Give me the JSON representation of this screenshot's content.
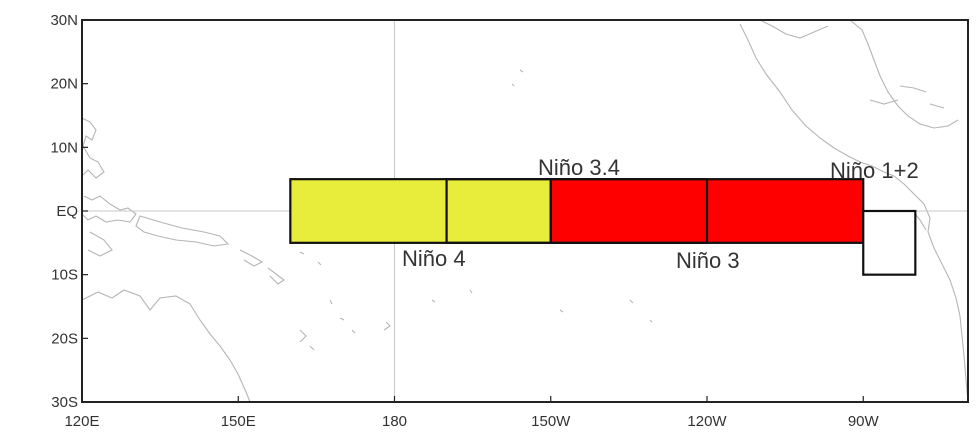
{
  "map": {
    "lon_range": [
      120,
      400
    ],
    "lat_range": [
      -30,
      30
    ],
    "lon_ticks": [
      {
        "value": 120,
        "label": "120E"
      },
      {
        "value": 150,
        "label": "150E"
      },
      {
        "value": 180,
        "label": "180"
      },
      {
        "value": 210,
        "label": "150W"
      },
      {
        "value": 240,
        "label": "120W"
      },
      {
        "value": 270,
        "label": "90W"
      }
    ],
    "lat_ticks": [
      {
        "value": 30,
        "label": "30N"
      },
      {
        "value": 20,
        "label": "20N"
      },
      {
        "value": 10,
        "label": "10N"
      },
      {
        "value": 0,
        "label": "EQ"
      },
      {
        "value": -10,
        "label": "10S"
      },
      {
        "value": -20,
        "label": "20S"
      },
      {
        "value": -30,
        "label": "30S"
      }
    ],
    "fills": [
      {
        "id": "nino4-fill",
        "lon": [
          160,
          210
        ],
        "lat": [
          -5,
          5
        ],
        "color": "#e8ec3a"
      },
      {
        "id": "nino3-fill",
        "lon": [
          210,
          270
        ],
        "lat": [
          -5,
          5
        ],
        "color": "#ff0000"
      }
    ],
    "regions": [
      {
        "id": "nino-3-4",
        "name": "Niño 3.4",
        "lon": [
          190,
          240
        ],
        "lat": [
          -5,
          5
        ],
        "fill": "none"
      },
      {
        "id": "nino-4",
        "name": "Niño 4",
        "lon": [
          160,
          210
        ],
        "lat": [
          -5,
          5
        ],
        "fill": "none"
      },
      {
        "id": "nino-3",
        "name": "Niño 3",
        "lon": [
          210,
          270
        ],
        "lat": [
          -5,
          5
        ],
        "fill": "none"
      },
      {
        "id": "nino-1-2",
        "name": "Niño 1+2",
        "lon": [
          270,
          280
        ],
        "lat": [
          -10,
          0
        ],
        "fill": "#ffffff"
      }
    ],
    "labels": {
      "nino_3_4": "Niño 3.4",
      "nino_4": "Niño 4",
      "nino_3": "Niño 3",
      "nino_1_2": "Niño 1+2"
    },
    "colors": {
      "nino4_yellow": "#e8ec3a",
      "nino3_red": "#ff0000",
      "box_outline": "#111111",
      "coastline": "#b5b5b5",
      "grid": "#c8c8c8"
    }
  }
}
